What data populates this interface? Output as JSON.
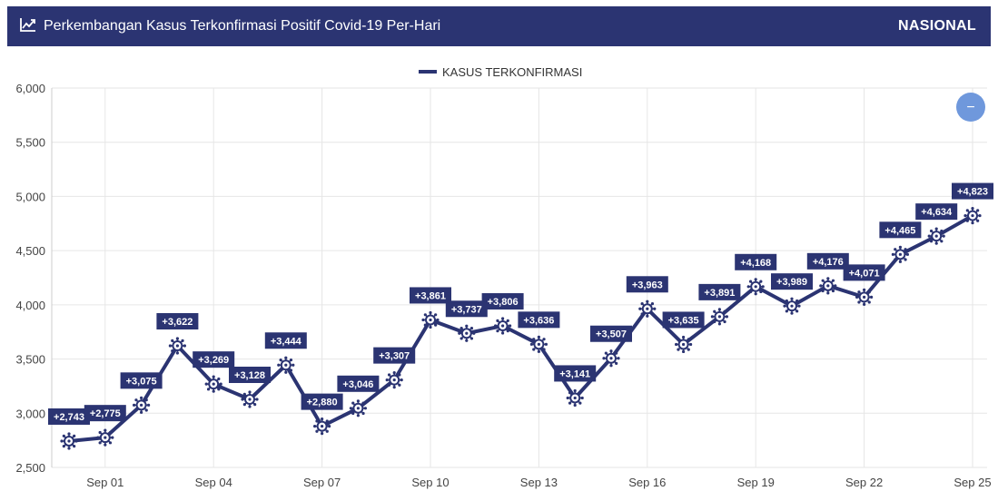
{
  "header": {
    "title": "Perkembangan Kasus Terkonfirmasi Positif Covid-19 Per-Hari",
    "region": "NASIONAL",
    "icon": "line-chart-icon"
  },
  "colors": {
    "header_bg": "#2b3472",
    "series": "#2b3472",
    "label_bg": "#2b3472",
    "grid": "#e6e6e6",
    "zoom_button": "#6f98dc"
  },
  "zoom_button": {
    "label": "−",
    "icon": "zoom-out-icon"
  },
  "chart_data": {
    "type": "line",
    "title": "",
    "xlabel": "",
    "ylabel": "",
    "ylim": [
      2500,
      6000
    ],
    "yticks": [
      2500,
      3000,
      3500,
      4000,
      4500,
      5000,
      5500,
      6000
    ],
    "ytick_labels": [
      "2,500",
      "3,000",
      "3,500",
      "4,000",
      "4,500",
      "5,000",
      "5,500",
      "6,000"
    ],
    "xtick_labels": [
      {
        "index": 1,
        "label": "Sep 01"
      },
      {
        "index": 4,
        "label": "Sep 04"
      },
      {
        "index": 7,
        "label": "Sep 07"
      },
      {
        "index": 10,
        "label": "Sep 10"
      },
      {
        "index": 13,
        "label": "Sep 13"
      },
      {
        "index": 16,
        "label": "Sep 16"
      },
      {
        "index": 19,
        "label": "Sep 19"
      },
      {
        "index": 22,
        "label": "Sep 22"
      },
      {
        "index": 25,
        "label": "Sep 25"
      }
    ],
    "grid": true,
    "legend_position": "top-center",
    "marker": "virus-icon",
    "series": [
      {
        "name": "KASUS TERKONFIRMASI",
        "values": [
          2743,
          2775,
          3075,
          3622,
          3269,
          3128,
          3444,
          2880,
          3046,
          3307,
          3861,
          3737,
          3806,
          3636,
          3141,
          3507,
          3963,
          3635,
          3891,
          4168,
          3989,
          4176,
          4071,
          4465,
          4634,
          4823
        ],
        "labels": [
          "+2,743",
          "+2,775",
          "+3,075",
          "+3,622",
          "+3,269",
          "+3,128",
          "+3,444",
          "+2,880",
          "+3,046",
          "+3,307",
          "+3,861",
          "+3,737",
          "+3,806",
          "+3,636",
          "+3,141",
          "+3,507",
          "+3,963",
          "+3,635",
          "+3,891",
          "+4,168",
          "+3,989",
          "+4,176",
          "+4,071",
          "+4,465",
          "+4,634",
          "+4,823"
        ]
      }
    ]
  }
}
